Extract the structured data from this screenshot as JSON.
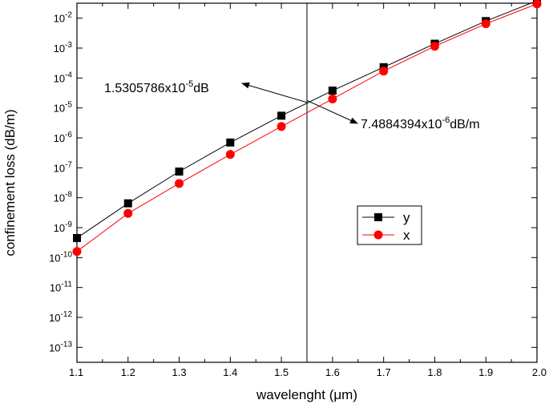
{
  "chart_data": {
    "type": "line",
    "xlabel": "wavelenght (μm)",
    "ylabel": "confinement loss (dB/m)",
    "xlim": [
      1.1,
      2.0
    ],
    "ylim_log10": [
      -13.5,
      -1.5
    ],
    "yscale": "log",
    "x_ticks": [
      "1.1",
      "1.2",
      "1.3",
      "1.4",
      "1.5",
      "1.6",
      "1.7",
      "1.8",
      "1.9",
      "2.0"
    ],
    "y_tick_exponents": [
      -2,
      -3,
      -4,
      -5,
      -6,
      -7,
      -8,
      -9,
      -10,
      -11,
      -12,
      -13
    ],
    "y_tick_base": "10",
    "grid": false,
    "legend_position": "center-right",
    "x": [
      1.1,
      1.2,
      1.3,
      1.4,
      1.5,
      1.6,
      1.7,
      1.8,
      1.9,
      2.0
    ],
    "series": [
      {
        "name": "y",
        "color": "#000000",
        "marker": "square",
        "values": [
          4.5e-10,
          6.5e-09,
          7.5e-08,
          7e-07,
          5.5e-06,
          3.8e-05,
          0.00023,
          0.0014,
          0.008,
          0.038
        ]
      },
      {
        "name": "x",
        "color": "#ff0000",
        "marker": "circle",
        "values": [
          1.6e-10,
          3e-09,
          3e-08,
          2.8e-07,
          2.4e-06,
          2e-05,
          0.00017,
          0.00115,
          0.0065,
          0.03
        ]
      }
    ],
    "vertical_line_x": 1.55,
    "annotations": [
      {
        "id": "upper",
        "mantissa": "1.5305786x10",
        "exponent": "-5",
        "unit": "dB",
        "target_x": 1.55,
        "target_y": 1.5305786e-05
      },
      {
        "id": "lower",
        "mantissa": "7.4884394x10",
        "exponent": "-6",
        "unit": "dB/m",
        "target_x": 1.55,
        "target_y": 7.4884394e-06
      }
    ]
  }
}
